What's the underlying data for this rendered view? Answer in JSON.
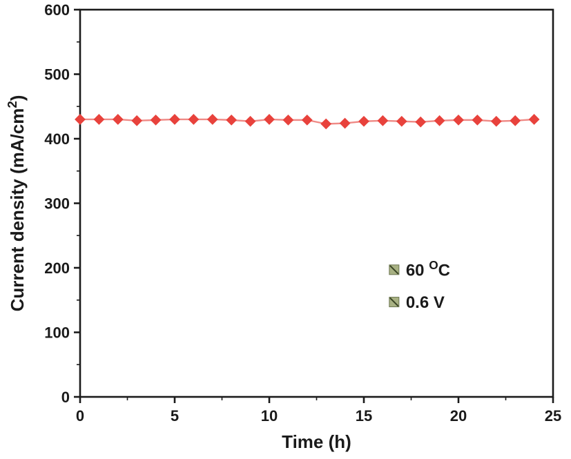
{
  "chart_data": {
    "type": "line",
    "title": "",
    "xlabel": "Time (h)",
    "ylabel_parts": [
      {
        "text": "Current density (mA/cm"
      },
      {
        "text": "2",
        "super": true
      },
      {
        "text": ")"
      }
    ],
    "x": [
      0,
      1,
      2,
      3,
      4,
      5,
      6,
      7,
      8,
      9,
      10,
      11,
      12,
      13,
      14,
      15,
      16,
      17,
      18,
      19,
      20,
      21,
      22,
      23,
      24
    ],
    "series": [
      {
        "name": "current-density",
        "values": [
          430,
          430,
          430,
          428,
          429,
          430,
          430,
          430,
          429,
          427,
          430,
          429,
          429,
          423,
          424,
          427,
          428,
          427,
          426,
          428,
          429,
          429,
          427,
          428,
          430
        ]
      }
    ],
    "xlim": [
      0,
      25
    ],
    "ylim": [
      0,
      600
    ],
    "x_major_ticks": [
      0,
      5,
      10,
      15,
      20,
      25
    ],
    "x_major_step": 5,
    "x_minor_step": 2.5,
    "y_major_ticks": [
      0,
      100,
      200,
      300,
      400,
      500,
      600
    ],
    "y_major_step": 100,
    "y_minor_step": 50,
    "grid": false,
    "legend_position": "none",
    "marker": "diamond",
    "marker_color": "#e8423c",
    "line_color": "#ef8a86",
    "axis_color": "#1a1a1a",
    "text_color": "#1a1a1a",
    "annotations": [
      {
        "x": 16.6,
        "y": 197,
        "parts": [
          {
            "text": "60 "
          },
          {
            "text": "O",
            "super": true
          },
          {
            "text": "C"
          }
        ]
      },
      {
        "x": 16.6,
        "y": 147,
        "parts": [
          {
            "text": "0.6 V"
          }
        ]
      }
    ],
    "annotation_marker_fill": "#a8b183",
    "annotation_marker_stroke": "#6b7550",
    "annotation_marker_slash": "#3a4526"
  }
}
